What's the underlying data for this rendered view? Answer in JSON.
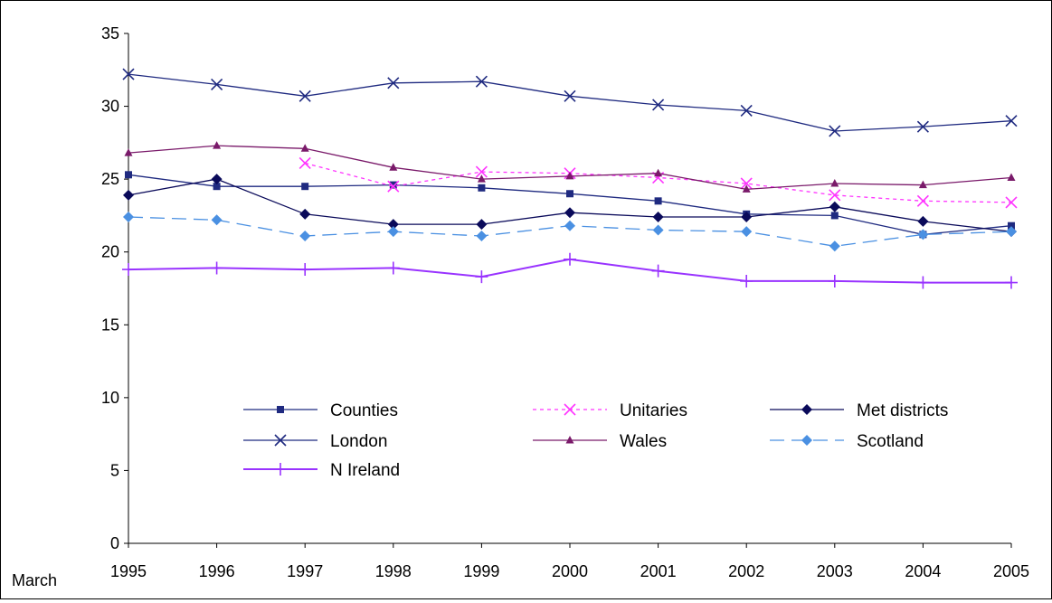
{
  "chart_data": {
    "type": "line",
    "xlabel": "March",
    "ylabel": "",
    "title": "",
    "categories": [
      "1995",
      "1996",
      "1997",
      "1998",
      "1999",
      "2000",
      "2001",
      "2002",
      "2003",
      "2004",
      "2005"
    ],
    "ylim": [
      0,
      35
    ],
    "yticks": [
      0,
      5,
      10,
      15,
      20,
      25,
      30,
      35
    ],
    "grid": false,
    "legend": "inside-bottom-center",
    "series": [
      {
        "name": "Counties",
        "color": "#1f2a80",
        "marker": "square",
        "dash": "solid",
        "values": [
          25.3,
          24.5,
          24.5,
          24.6,
          24.4,
          24.0,
          23.5,
          22.6,
          22.5,
          21.2,
          21.8
        ]
      },
      {
        "name": "Unitaries",
        "color": "#ff33ff",
        "marker": "x",
        "dash": "dotted",
        "values": [
          null,
          null,
          26.1,
          24.5,
          25.5,
          25.4,
          25.1,
          24.7,
          23.9,
          23.5,
          23.4
        ]
      },
      {
        "name": "Met districts",
        "color": "#0a0a5a",
        "marker": "diamond",
        "dash": "solid",
        "values": [
          23.9,
          25.0,
          22.6,
          21.9,
          21.9,
          22.7,
          22.4,
          22.4,
          23.1,
          22.1,
          21.4
        ]
      },
      {
        "name": "London",
        "color": "#1f2a80",
        "marker": "x",
        "dash": "solid",
        "values": [
          32.2,
          31.5,
          30.7,
          31.6,
          31.7,
          30.7,
          30.1,
          29.7,
          28.3,
          28.6,
          29.0
        ]
      },
      {
        "name": "Wales",
        "color": "#7a1a6a",
        "marker": "triangle",
        "dash": "solid",
        "values": [
          26.8,
          27.3,
          27.1,
          25.8,
          25.0,
          25.2,
          25.4,
          24.3,
          24.7,
          24.6,
          25.1
        ]
      },
      {
        "name": "Scotland",
        "color": "#4a90e2",
        "marker": "diamond",
        "dash": "longdash",
        "values": [
          22.4,
          22.2,
          21.1,
          21.4,
          21.1,
          21.8,
          21.5,
          21.4,
          20.4,
          21.2,
          21.4
        ]
      },
      {
        "name": "N Ireland",
        "color": "#9933ff",
        "marker": "plus",
        "dash": "solid",
        "values": [
          18.8,
          18.9,
          18.8,
          18.9,
          18.3,
          19.5,
          18.7,
          18.0,
          18.0,
          17.9,
          17.9
        ]
      }
    ]
  }
}
